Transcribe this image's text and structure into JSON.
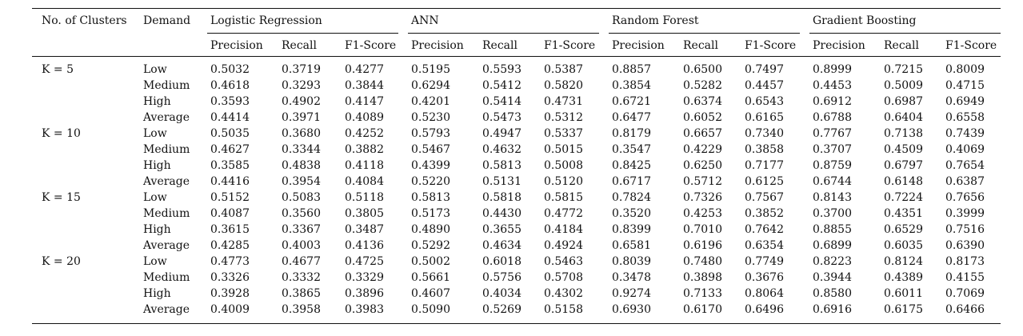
{
  "table": {
    "header": {
      "clusters_label": "No. of Clusters",
      "demand_label": "Demand",
      "models": [
        "Logistic Regression",
        "ANN",
        "Random Forest",
        "Gradient Boosting"
      ],
      "metrics": [
        "Precision",
        "Recall",
        "F1-Score"
      ]
    },
    "groups": [
      {
        "label": "K = 5",
        "rows": [
          {
            "demand": "Low",
            "values": [
              "0.5032",
              "0.3719",
              "0.4277",
              "0.5195",
              "0.5593",
              "0.5387",
              "0.8857",
              "0.6500",
              "0.7497",
              "0.8999",
              "0.7215",
              "0.8009"
            ]
          },
          {
            "demand": "Medium",
            "values": [
              "0.4618",
              "0.3293",
              "0.3844",
              "0.6294",
              "0.5412",
              "0.5820",
              "0.3854",
              "0.5282",
              "0.4457",
              "0.4453",
              "0.5009",
              "0.4715"
            ]
          },
          {
            "demand": "High",
            "values": [
              "0.3593",
              "0.4902",
              "0.4147",
              "0.4201",
              "0.5414",
              "0.4731",
              "0.6721",
              "0.6374",
              "0.6543",
              "0.6912",
              "0.6987",
              "0.6949"
            ]
          },
          {
            "demand": "Average",
            "values": [
              "0.4414",
              "0.3971",
              "0.4089",
              "0.5230",
              "0.5473",
              "0.5312",
              "0.6477",
              "0.6052",
              "0.6165",
              "0.6788",
              "0.6404",
              "0.6558"
            ]
          }
        ]
      },
      {
        "label": "K = 10",
        "rows": [
          {
            "demand": "Low",
            "values": [
              "0.5035",
              "0.3680",
              "0.4252",
              "0.5793",
              "0.4947",
              "0.5337",
              "0.8179",
              "0.6657",
              "0.7340",
              "0.7767",
              "0.7138",
              "0.7439"
            ]
          },
          {
            "demand": "Medium",
            "values": [
              "0.4627",
              "0.3344",
              "0.3882",
              "0.5467",
              "0.4632",
              "0.5015",
              "0.3547",
              "0.4229",
              "0.3858",
              "0.3707",
              "0.4509",
              "0.4069"
            ]
          },
          {
            "demand": "High",
            "values": [
              "0.3585",
              "0.4838",
              "0.4118",
              "0.4399",
              "0.5813",
              "0.5008",
              "0.8425",
              "0.6250",
              "0.7177",
              "0.8759",
              "0.6797",
              "0.7654"
            ]
          },
          {
            "demand": "Average",
            "values": [
              "0.4416",
              "0.3954",
              "0.4084",
              "0.5220",
              "0.5131",
              "0.5120",
              "0.6717",
              "0.5712",
              "0.6125",
              "0.6744",
              "0.6148",
              "0.6387"
            ]
          }
        ]
      },
      {
        "label": "K = 15",
        "rows": [
          {
            "demand": "Low",
            "values": [
              "0.5152",
              "0.5083",
              "0.5118",
              "0.5813",
              "0.5818",
              "0.5815",
              "0.7824",
              "0.7326",
              "0.7567",
              "0.8143",
              "0.7224",
              "0.7656"
            ]
          },
          {
            "demand": "Medium",
            "values": [
              "0.4087",
              "0.3560",
              "0.3805",
              "0.5173",
              "0.4430",
              "0.4772",
              "0.3520",
              "0.4253",
              "0.3852",
              "0.3700",
              "0.4351",
              "0.3999"
            ]
          },
          {
            "demand": "High",
            "values": [
              "0.3615",
              "0.3367",
              "0.3487",
              "0.4890",
              "0.3655",
              "0.4184",
              "0.8399",
              "0.7010",
              "0.7642",
              "0.8855",
              "0.6529",
              "0.7516"
            ]
          },
          {
            "demand": "Average",
            "values": [
              "0.4285",
              "0.4003",
              "0.4136",
              "0.5292",
              "0.4634",
              "0.4924",
              "0.6581",
              "0.6196",
              "0.6354",
              "0.6899",
              "0.6035",
              "0.6390"
            ]
          }
        ]
      },
      {
        "label": "K = 20",
        "rows": [
          {
            "demand": "Low",
            "values": [
              "0.4773",
              "0.4677",
              "0.4725",
              "0.5002",
              "0.6018",
              "0.5463",
              "0.8039",
              "0.7480",
              "0.7749",
              "0.8223",
              "0.8124",
              "0.8173"
            ]
          },
          {
            "demand": "Medium",
            "values": [
              "0.3326",
              "0.3332",
              "0.3329",
              "0.5661",
              "0.5756",
              "0.5708",
              "0.3478",
              "0.3898",
              "0.3676",
              "0.3944",
              "0.4389",
              "0.4155"
            ]
          },
          {
            "demand": "High",
            "values": [
              "0.3928",
              "0.3865",
              "0.3896",
              "0.4607",
              "0.4034",
              "0.4302",
              "0.9274",
              "0.7133",
              "0.8064",
              "0.8580",
              "0.6011",
              "0.7069"
            ]
          },
          {
            "demand": "Average",
            "values": [
              "0.4009",
              "0.3958",
              "0.3983",
              "0.5090",
              "0.5269",
              "0.5158",
              "0.6930",
              "0.6170",
              "0.6496",
              "0.6916",
              "0.6175",
              "0.6466"
            ]
          }
        ]
      }
    ]
  }
}
